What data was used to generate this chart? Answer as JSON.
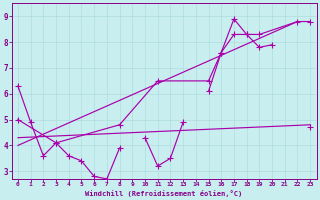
{
  "background_color": "#c8eef0",
  "grid_color": "#b0dde0",
  "line_color": "#aa00aa",
  "xlabel": "Windchill (Refroidissement éolien,°C)",
  "xlim": [
    -0.5,
    23.5
  ],
  "ylim": [
    2.7,
    9.5
  ],
  "yticks": [
    3,
    4,
    5,
    6,
    7,
    8,
    9
  ],
  "xticks": [
    0,
    1,
    2,
    3,
    4,
    5,
    6,
    7,
    8,
    9,
    10,
    11,
    12,
    13,
    14,
    15,
    16,
    17,
    18,
    19,
    20,
    21,
    22,
    23
  ],
  "line1_x": [
    0,
    1,
    2,
    3,
    4,
    5,
    6,
    7,
    8,
    10,
    11,
    12,
    13,
    15,
    16,
    17,
    18,
    19,
    20,
    23
  ],
  "line1_y": [
    6.3,
    4.9,
    3.6,
    4.1,
    3.6,
    3.4,
    2.8,
    2.7,
    3.9,
    4.3,
    3.2,
    3.5,
    4.9,
    6.1,
    7.6,
    8.3,
    8.3,
    7.8,
    7.9,
    4.7
  ],
  "line1_breaks": [
    [
      8,
      10
    ],
    [
      13,
      15
    ],
    [
      20,
      23
    ]
  ],
  "line2_x": [
    0,
    3,
    8,
    11,
    15,
    16,
    17,
    18,
    19,
    22,
    23
  ],
  "line2_y": [
    5.0,
    4.1,
    4.8,
    6.5,
    6.5,
    7.6,
    8.9,
    8.3,
    8.3,
    8.8,
    8.8
  ],
  "line3_x": [
    0,
    23
  ],
  "line3_y": [
    4.3,
    4.8
  ],
  "spine_color": "#880088",
  "tick_color": "#880088",
  "label_color": "#880088"
}
